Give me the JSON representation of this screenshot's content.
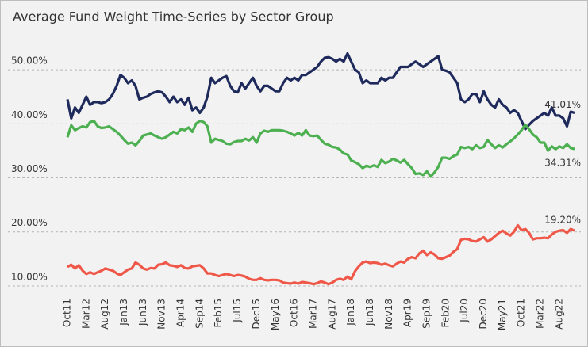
{
  "chart_data": {
    "type": "line",
    "title": "Average Fund Weight Time-Series by Sector Group",
    "categories": [
      "Oct11",
      null,
      null,
      null,
      null,
      "Mar12",
      null,
      null,
      null,
      null,
      "Aug12",
      null,
      null,
      null,
      null,
      "Jan13",
      null,
      null,
      null,
      null,
      "Jun13",
      null,
      null,
      null,
      null,
      "Nov13",
      null,
      null,
      null,
      null,
      "Apr14",
      null,
      null,
      null,
      null,
      "Sep14",
      null,
      null,
      null,
      null,
      "Feb15",
      null,
      null,
      null,
      null,
      "Jul15",
      null,
      null,
      null,
      null,
      "Dec15",
      null,
      null,
      null,
      null,
      "May16",
      null,
      null,
      null,
      null,
      "Oct16",
      null,
      null,
      null,
      null,
      "Mar17",
      null,
      null,
      null,
      null,
      "Aug17",
      null,
      null,
      null,
      null,
      "Jan18",
      null,
      null,
      null,
      null,
      "Jun18",
      null,
      null,
      null,
      null,
      "Nov18",
      null,
      null,
      null,
      null,
      "Apr19",
      null,
      null,
      null,
      null,
      "Sep19",
      null,
      null,
      null,
      null,
      "Feb20",
      null,
      null,
      null,
      null,
      "Jul20",
      null,
      null,
      null,
      null,
      "Dec20",
      null,
      null,
      null,
      null,
      "May21",
      null,
      null,
      null,
      null,
      "Oct21",
      null,
      null,
      null,
      null,
      "Mar22",
      null,
      null,
      null,
      null,
      "Aug22",
      null,
      null,
      null,
      null
    ],
    "ylim": [
      7.5,
      55
    ],
    "yticks": [
      {
        "value": 10,
        "label": "10.00%"
      },
      {
        "value": 20,
        "label": "20.00%"
      },
      {
        "value": 30,
        "label": "30.00%"
      },
      {
        "value": 40,
        "label": "40.00%"
      },
      {
        "value": 50,
        "label": "50.00%"
      }
    ],
    "grid": true,
    "series": [
      {
        "color": "#1f2a5c",
        "values": [
          43.5,
          40,
          42,
          41,
          42.5,
          44,
          42.5,
          43,
          43,
          42.8,
          43,
          43.5,
          44.5,
          46,
          48,
          47.5,
          46.5,
          47,
          46,
          43.5,
          43.8,
          44,
          44.5,
          44.8,
          45,
          44.8,
          44,
          43,
          44,
          43,
          43.5,
          42.5,
          43.8,
          41.5,
          42,
          41,
          42,
          44,
          47.5,
          46.5,
          47,
          47.5,
          47.8,
          46,
          45,
          44.8,
          46.5,
          45.5,
          46.5,
          47.5,
          46,
          45,
          46,
          46,
          45.5,
          45,
          45,
          46.5,
          47.5,
          47,
          47.5,
          47,
          48,
          48,
          48.5,
          49,
          49.5,
          50.5,
          51.2,
          51.3,
          51,
          50.5,
          51,
          50.5,
          52,
          50.5,
          49,
          48.5,
          46.5,
          47,
          46.5,
          46.5,
          46.5,
          47.5,
          47,
          47.5,
          47.5,
          48.5,
          49.5,
          49.5,
          49.5,
          50,
          50.5,
          50,
          49.5,
          50,
          50.5,
          51,
          51.5,
          49,
          48.8,
          48.5,
          47.5,
          46.5,
          43.5,
          43,
          43.5,
          44.5,
          44.5,
          43,
          45,
          43.5,
          42.5,
          42,
          43.5,
          42.5,
          42,
          41,
          41.5,
          41,
          39.5,
          38,
          38.8,
          39.5,
          40,
          40.5,
          41,
          40.5,
          42,
          40.5,
          40.5,
          40,
          38.5,
          41.2,
          41.01
        ],
        "value_labels": [
          null,
          null,
          null,
          null,
          null,
          null,
          null,
          null,
          null,
          null,
          null,
          null,
          null,
          null,
          null,
          null,
          null,
          null,
          null,
          null,
          null,
          null,
          null,
          null,
          null,
          null,
          null,
          null,
          null,
          null,
          null,
          null,
          null,
          null,
          null,
          null,
          null,
          null,
          null,
          null,
          null,
          null,
          null,
          null,
          null,
          null,
          null,
          null,
          null,
          null,
          null,
          null,
          null,
          null,
          null,
          null,
          null,
          null,
          null,
          null,
          null,
          null,
          null,
          null,
          null,
          null,
          null,
          null,
          null,
          null,
          null,
          null,
          null,
          null,
          null,
          null,
          null,
          null,
          null,
          null,
          null,
          null,
          null,
          null,
          null,
          null,
          null,
          null,
          null,
          null,
          null,
          null,
          null,
          null,
          null,
          null,
          null,
          null,
          null,
          null,
          null,
          null,
          null,
          null,
          null,
          null,
          null,
          null,
          null,
          null,
          null,
          null,
          null,
          null,
          null,
          null,
          null,
          null,
          null,
          null,
          null,
          null,
          null,
          null,
          null,
          null,
          null,
          null,
          null,
          null,
          null,
          null,
          null,
          null,
          "41.01%"
        ]
      },
      {
        "color": "#4caf50",
        "values": [
          36.5,
          38.7,
          37.8,
          38.2,
          38.5,
          38.3,
          39.3,
          39.5,
          38.5,
          38.2,
          38.3,
          38.5,
          38,
          37.5,
          36.8,
          36,
          35.3,
          35.5,
          35,
          35.8,
          36.8,
          37,
          37.2,
          36.8,
          36.5,
          36.2,
          36.5,
          37,
          37.5,
          37.2,
          38,
          37.8,
          38.3,
          37.5,
          39,
          39.5,
          39.3,
          38.5,
          35.5,
          36.2,
          36,
          35.8,
          35.3,
          35.2,
          35.6,
          35.8,
          35.8,
          36.2,
          35.9,
          36.5,
          35.5,
          37.2,
          37.7,
          37.5,
          37.8,
          37.8,
          37.8,
          37.7,
          37.5,
          37.2,
          36.8,
          37.3,
          36.8,
          37.8,
          36.8,
          36.7,
          36.8,
          36,
          35.3,
          35.1,
          34.7,
          34.6,
          34.2,
          33.5,
          33.3,
          32.2,
          31.9,
          31.5,
          30.8,
          31.2,
          31,
          31.3,
          31,
          32.3,
          31.7,
          32,
          32.5,
          32.2,
          31.8,
          32.3,
          31.5,
          30.8,
          29.7,
          29.8,
          29.5,
          30.2,
          29.2,
          30,
          31,
          32.7,
          32.7,
          32.5,
          33,
          33.3,
          34.7,
          34.5,
          34.7,
          34.3,
          35,
          34.5,
          34.7,
          36,
          35.2,
          34.5,
          35,
          34.6,
          35.2,
          35.7,
          36.3,
          37,
          37.8,
          38.8,
          38,
          37,
          36.5,
          35.5,
          35.5,
          34,
          34.8,
          34.3,
          34.8,
          34.5,
          35.2,
          34.5,
          34.31
        ],
        "value_labels": [
          null,
          null,
          null,
          null,
          null,
          null,
          null,
          null,
          null,
          null,
          null,
          null,
          null,
          null,
          null,
          null,
          null,
          null,
          null,
          null,
          null,
          null,
          null,
          null,
          null,
          null,
          null,
          null,
          null,
          null,
          null,
          null,
          null,
          null,
          null,
          null,
          null,
          null,
          null,
          null,
          null,
          null,
          null,
          null,
          null,
          null,
          null,
          null,
          null,
          null,
          null,
          null,
          null,
          null,
          null,
          null,
          null,
          null,
          null,
          null,
          null,
          null,
          null,
          null,
          null,
          null,
          null,
          null,
          null,
          null,
          null,
          null,
          null,
          null,
          null,
          null,
          null,
          null,
          null,
          null,
          null,
          null,
          null,
          null,
          null,
          null,
          null,
          null,
          null,
          null,
          null,
          null,
          null,
          null,
          null,
          null,
          null,
          null,
          null,
          null,
          null,
          null,
          null,
          null,
          null,
          null,
          null,
          null,
          null,
          null,
          null,
          null,
          null,
          null,
          null,
          null,
          null,
          null,
          null,
          null,
          null,
          null,
          null,
          null,
          null,
          null,
          null,
          null,
          null,
          null,
          null,
          null,
          null,
          null,
          "34.31%"
        ]
      },
      {
        "color": "#ef5848",
        "values": [
          12.5,
          12.9,
          12.2,
          12.8,
          11.8,
          11.2,
          11.5,
          11.2,
          11.5,
          11.8,
          12.2,
          12,
          11.8,
          11.3,
          11,
          11.5,
          12,
          12.2,
          13.3,
          12.9,
          12.2,
          12,
          12.3,
          12.2,
          12.9,
          13,
          13.3,
          12.8,
          12.7,
          12.5,
          12.8,
          12.3,
          12.2,
          12.6,
          12.7,
          12.8,
          12.2,
          11.3,
          11.3,
          11,
          10.8,
          11,
          11.2,
          11,
          10.8,
          11,
          10.9,
          10.7,
          10.3,
          10.1,
          10.1,
          10.4,
          10.1,
          10,
          10.1,
          10.1,
          10,
          9.6,
          9.5,
          9.4,
          9.6,
          9.4,
          9.7,
          9.6,
          9.5,
          9.3,
          9.5,
          9.8,
          9.6,
          9.3,
          9.6,
          10.1,
          10.3,
          10.1,
          10.7,
          10.2,
          11.7,
          12.6,
          13.3,
          13.5,
          13.2,
          13.3,
          13.2,
          12.9,
          13.1,
          12.8,
          12.6,
          13.1,
          13.5,
          13.3,
          14,
          14.3,
          14.1,
          15,
          15.5,
          14.7,
          15.2,
          14.8,
          14.1,
          14,
          14.3,
          14.6,
          15.3,
          15.8,
          17.5,
          17.7,
          17.6,
          17.3,
          17.2,
          17.6,
          18,
          17.2,
          17.6,
          18.2,
          18.8,
          19.2,
          18.7,
          18.3,
          19,
          20.2,
          19.3,
          19.5,
          18.8,
          17.6,
          17.8,
          17.8,
          17.9,
          17.8,
          18.5,
          19,
          19.2,
          19.3,
          18.8,
          19.5,
          19.2
        ],
        "value_labels": [
          null,
          null,
          null,
          null,
          null,
          null,
          null,
          null,
          null,
          null,
          null,
          null,
          null,
          null,
          null,
          null,
          null,
          null,
          null,
          null,
          null,
          null,
          null,
          null,
          null,
          null,
          null,
          null,
          null,
          null,
          null,
          null,
          null,
          null,
          null,
          null,
          null,
          null,
          null,
          null,
          null,
          null,
          null,
          null,
          null,
          null,
          null,
          null,
          null,
          null,
          null,
          null,
          null,
          null,
          null,
          null,
          null,
          null,
          null,
          null,
          null,
          null,
          null,
          null,
          null,
          null,
          null,
          null,
          null,
          null,
          null,
          null,
          null,
          null,
          null,
          null,
          null,
          null,
          null,
          null,
          null,
          null,
          null,
          null,
          null,
          null,
          null,
          null,
          null,
          null,
          null,
          null,
          null,
          null,
          null,
          null,
          null,
          null,
          null,
          null,
          null,
          null,
          null,
          null,
          null,
          null,
          null,
          null,
          null,
          null,
          null,
          null,
          null,
          null,
          null,
          null,
          null,
          null,
          null,
          null,
          null,
          null,
          null,
          null,
          null,
          null,
          null,
          null,
          null,
          null,
          null,
          null,
          null,
          null,
          "19.20%"
        ]
      }
    ]
  }
}
